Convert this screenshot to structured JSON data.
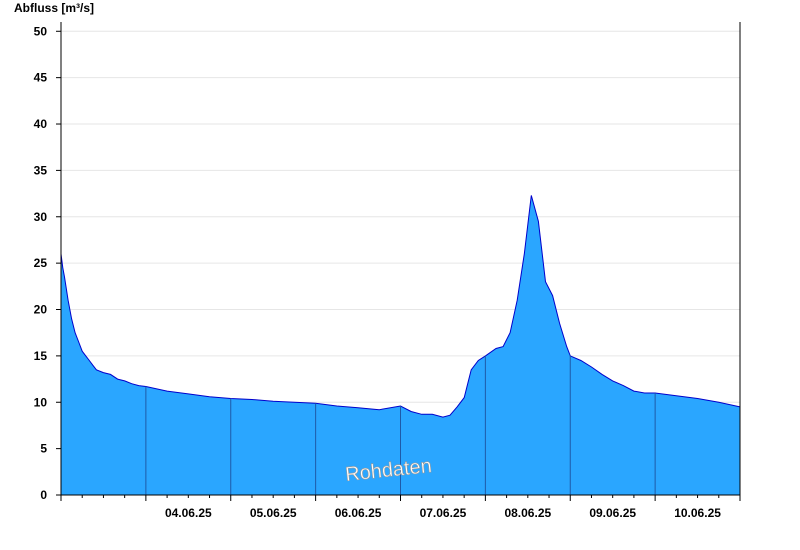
{
  "chart_data": {
    "type": "area",
    "ylabel": "Abfluss [m³/s]",
    "ylim": [
      0,
      51
    ],
    "yticks": [
      0,
      5,
      10,
      15,
      20,
      25,
      30,
      35,
      40,
      45,
      50
    ],
    "xlim": [
      "03.06.25 00:00",
      "10.06.25 24:00"
    ],
    "xtick_labels": [
      "04.06.25",
      "05.06.25",
      "06.06.25",
      "07.06.25",
      "08.06.25",
      "09.06.25",
      "10.06.25"
    ],
    "grid": true,
    "watermark": "Rohdaten",
    "colors": {
      "fill": "#2aa6ff",
      "line": "#0000cc",
      "grid": "#e6e6e6",
      "daydivider": "#1e5aa8"
    },
    "series": [
      {
        "x": [
          "03.06.25 00:00",
          "03.06.25 00:30",
          "03.06.25 01:00",
          "03.06.25 02:00",
          "03.06.25 03:00",
          "03.06.25 04:00",
          "03.06.25 05:00",
          "03.06.25 06:00",
          "03.06.25 07:00",
          "03.06.25 08:00",
          "03.06.25 09:00",
          "03.06.25 10:00",
          "03.06.25 12:00",
          "03.06.25 14:00",
          "03.06.25 16:00",
          "03.06.25 18:00",
          "03.06.25 20:00",
          "03.06.25 22:00",
          "04.06.25 00:00",
          "04.06.25 06:00",
          "04.06.25 12:00",
          "04.06.25 18:00",
          "05.06.25 00:00",
          "05.06.25 06:00",
          "05.06.25 12:00",
          "05.06.25 18:00",
          "06.06.25 00:00",
          "06.06.25 06:00",
          "06.06.25 12:00",
          "06.06.25 18:00",
          "07.06.25 00:00",
          "07.06.25 03:00",
          "07.06.25 06:00",
          "07.06.25 09:00",
          "07.06.25 12:00",
          "07.06.25 14:00",
          "07.06.25 16:00",
          "07.06.25 18:00",
          "07.06.25 20:00",
          "07.06.25 22:00",
          "08.06.25 00:00",
          "08.06.25 03:00",
          "08.06.25 05:00",
          "08.06.25 07:00",
          "08.06.25 09:00",
          "08.06.25 11:00",
          "08.06.25 13:00",
          "08.06.25 15:00",
          "08.06.25 17:00",
          "08.06.25 19:00",
          "08.06.25 21:00",
          "08.06.25 23:00",
          "09.06.25 00:00",
          "09.06.25 03:00",
          "09.06.25 06:00",
          "09.06.25 09:00",
          "09.06.25 12:00",
          "09.06.25 15:00",
          "09.06.25 18:00",
          "09.06.25 21:00",
          "10.06.25 00:00",
          "10.06.25 06:00",
          "10.06.25 12:00",
          "10.06.25 18:00",
          "10.06.25 24:00"
        ],
        "y": [
          26.0,
          24.5,
          23.5,
          21.0,
          19.0,
          17.5,
          16.5,
          15.5,
          15.0,
          14.5,
          14.0,
          13.5,
          13.2,
          13.0,
          12.5,
          12.3,
          12.0,
          11.8,
          11.7,
          11.2,
          10.9,
          10.6,
          10.4,
          10.3,
          10.1,
          10.0,
          9.9,
          9.6,
          9.4,
          9.2,
          9.6,
          9.0,
          8.7,
          8.7,
          8.4,
          8.6,
          9.5,
          10.5,
          13.5,
          14.5,
          15.0,
          15.8,
          16.0,
          17.5,
          21.0,
          26.0,
          32.3,
          29.5,
          23.0,
          21.5,
          18.5,
          16.0,
          15.0,
          14.5,
          13.8,
          13.0,
          12.3,
          11.8,
          11.2,
          11.0,
          11.0,
          10.7,
          10.4,
          10.0,
          9.5
        ]
      }
    ]
  }
}
